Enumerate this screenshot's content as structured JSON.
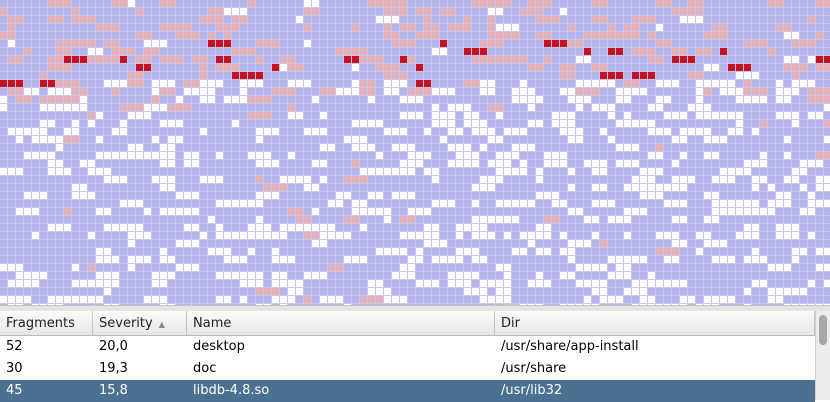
{
  "table": {
    "headers": [
      "Fragments",
      "Severity",
      "Name",
      "Dir"
    ],
    "rows": [
      [
        52,
        "20,0",
        "desktop",
        "/usr/share/app-install"
      ],
      [
        30,
        "19,3",
        "doc",
        "/usr/share"
      ],
      [
        45,
        "15,8",
        "libdb-4.8.so",
        "/usr/lib32"
      ]
    ],
    "selected_row": 2
  }
}
